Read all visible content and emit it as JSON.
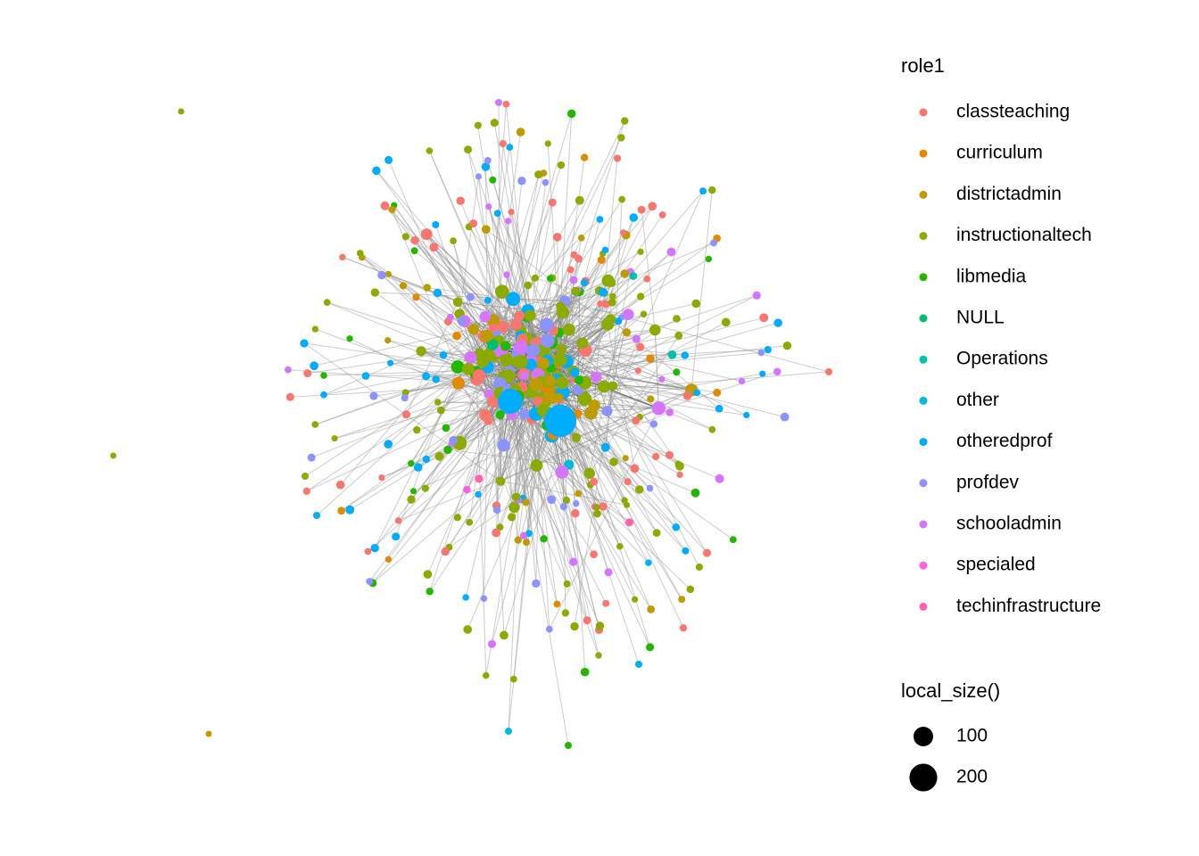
{
  "chart_data": {
    "type": "network",
    "color_legend": {
      "title": "role1",
      "items": [
        {
          "label": "classteaching",
          "color": "#F8766D"
        },
        {
          "label": "curriculum",
          "color": "#E18A00"
        },
        {
          "label": "districtadmin",
          "color": "#BE9C00"
        },
        {
          "label": "instructionaltech",
          "color": "#8CAB00"
        },
        {
          "label": "libmedia",
          "color": "#24B700"
        },
        {
          "label": "NULL",
          "color": "#00BE70"
        },
        {
          "label": "Operations",
          "color": "#00C1AB"
        },
        {
          "label": "other",
          "color": "#00BBDA"
        },
        {
          "label": "otheredprof",
          "color": "#00ACFC"
        },
        {
          "label": "profdev",
          "color": "#8B93FF"
        },
        {
          "label": "schooladmin",
          "color": "#D575FE"
        },
        {
          "label": "specialed",
          "color": "#F962DD"
        },
        {
          "label": "techinfrastructure",
          "color": "#FF65AC"
        }
      ]
    },
    "size_legend": {
      "title": "local_size()",
      "values": [
        100,
        200
      ]
    }
  }
}
